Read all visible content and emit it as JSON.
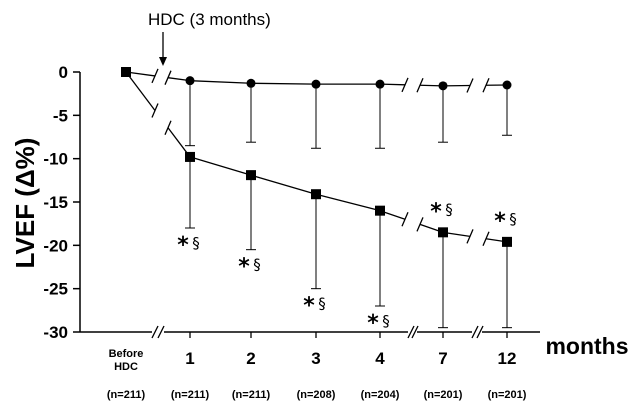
{
  "chart_data": {
    "type": "line",
    "ylabel": "LVEF (Δ%)",
    "xlabel": "months",
    "ylim": [
      -30,
      0
    ],
    "yticks": [
      0,
      -5,
      -10,
      -15,
      -20,
      -25,
      -30
    ],
    "categories": [
      "Before HDC",
      "1",
      "2",
      "3",
      "4",
      "7",
      "12"
    ],
    "category_lines": [
      [
        "Before",
        "HDC"
      ],
      [
        "1"
      ],
      [
        "2"
      ],
      [
        "3"
      ],
      [
        "4"
      ],
      [
        "7"
      ],
      [
        "12"
      ]
    ],
    "n_labels": [
      "(n=211)",
      "(n=211)",
      "(n=211)",
      "(n=208)",
      "(n=204)",
      "(n=201)",
      "(n=201)"
    ],
    "annotation": "HDC (3 months)",
    "significance_marker": {
      "star": "*",
      "section": "§"
    },
    "grid": false,
    "series": [
      {
        "marker": "circle",
        "values": [
          0,
          -1,
          -1.3,
          -1.4,
          -1.4,
          -1.6,
          -1.5
        ],
        "sd_lower": [
          null,
          -8.5,
          -8.1,
          -8.8,
          -8.8,
          -8.1,
          -7.3
        ],
        "significant": [
          false,
          false,
          false,
          false,
          false,
          false,
          false
        ]
      },
      {
        "marker": "square",
        "values": [
          0,
          -9.8,
          -11.9,
          -14.1,
          -16.0,
          -18.5,
          -19.6
        ],
        "sd_lower": [
          null,
          -18.0,
          -20.5,
          -25.0,
          -27.0,
          -29.5,
          -29.5
        ],
        "significant": [
          false,
          true,
          true,
          true,
          true,
          true,
          true
        ]
      }
    ]
  }
}
